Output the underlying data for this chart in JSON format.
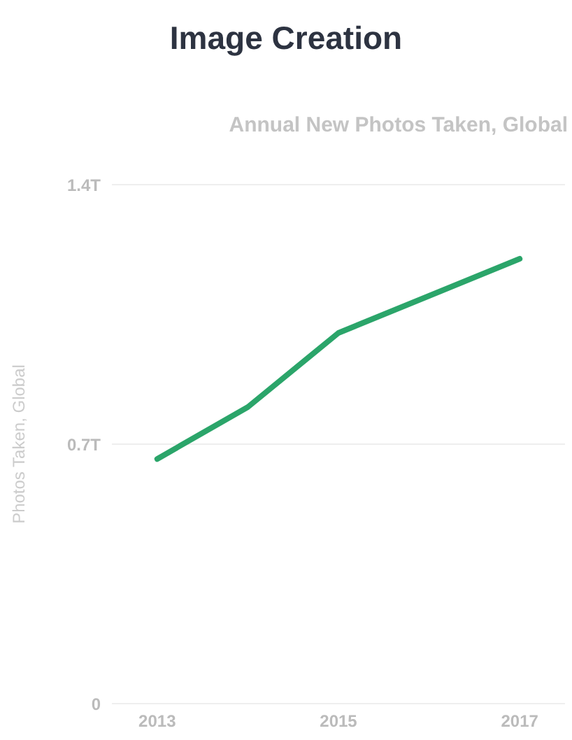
{
  "chart_data": {
    "type": "line",
    "title": "Image Creation",
    "subtitle": "Annual New Photos Taken, Global",
    "ylabel": "Photos Taken, Global",
    "x": [
      2013,
      2014,
      2015,
      2016,
      2017
    ],
    "series": [
      {
        "color": "#2ba56a",
        "values": [
          0.66,
          0.8,
          1.0,
          1.1,
          1.2
        ]
      }
    ],
    "xlim": [
      2012.5,
      2017.5
    ],
    "xticks": [
      2013,
      2015,
      2017
    ],
    "ylim": [
      0,
      1.4
    ],
    "yticks": [
      {
        "value": 0,
        "label": "0"
      },
      {
        "value": 0.7,
        "label": "0.7T"
      },
      {
        "value": 1.4,
        "label": "1.4T"
      }
    ],
    "grid": "y",
    "legend": false,
    "marker": "none",
    "line_style": "solid"
  }
}
